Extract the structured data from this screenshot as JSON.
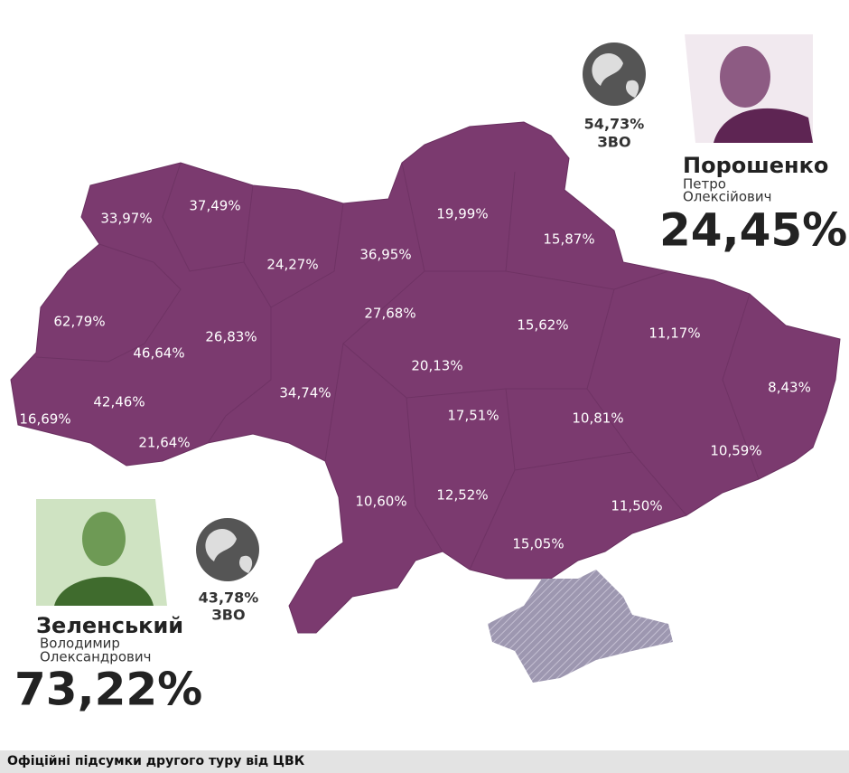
{
  "candidates": [
    {
      "surname": "Порошенко",
      "given_name": "Петро",
      "patronymic": "Олексійович",
      "result": "24,45%",
      "abroad_result": "54,73%",
      "abroad_label": "ЗВО"
    },
    {
      "surname": "Зеленський",
      "given_name": "Володимир",
      "patronymic": "Олександрович",
      "result": "73,22%",
      "abroad_result": "43,78%",
      "abroad_label": "ЗВО"
    }
  ],
  "regions": [
    "33,97%",
    "37,49%",
    "24,27%",
    "36,95%",
    "19,99%",
    "15,87%",
    "62,79%",
    "46,64%",
    "26,83%",
    "27,68%",
    "15,62%",
    "11,17%",
    "20,13%",
    "8,43%",
    "42,46%",
    "34,74%",
    "16,69%",
    "17,51%",
    "10,81%",
    "21,64%",
    "10,59%",
    "10,60%",
    "12,52%",
    "11,50%",
    "15,05%"
  ],
  "footer": "Офіційні підсумки другого туру від ЦВК"
}
